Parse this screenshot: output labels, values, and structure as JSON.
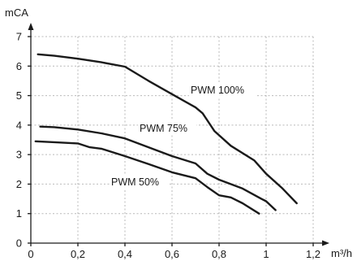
{
  "chart_data": {
    "type": "line",
    "title": "",
    "ylabel": "mCA",
    "xlabel": "m³/h",
    "xlim": [
      0,
      1.2
    ],
    "ylim": [
      0,
      7
    ],
    "x_ticks": [
      "0",
      "0,2",
      "0,4",
      "0,6",
      "0,8",
      "1",
      "1,2"
    ],
    "y_ticks": [
      "0",
      "1",
      "2",
      "3",
      "4",
      "5",
      "6",
      "7"
    ],
    "grid": true,
    "legend": "inline labels on curves",
    "line_color": "#1a1a1a",
    "series": [
      {
        "name": "PWM 100%",
        "points": [
          [
            0.03,
            6.4
          ],
          [
            0.1,
            6.35
          ],
          [
            0.2,
            6.25
          ],
          [
            0.3,
            6.13
          ],
          [
            0.4,
            5.98
          ],
          [
            0.5,
            5.5
          ],
          [
            0.6,
            5.05
          ],
          [
            0.7,
            4.6
          ],
          [
            0.73,
            4.4
          ],
          [
            0.78,
            3.8
          ],
          [
            0.85,
            3.3
          ],
          [
            0.95,
            2.8
          ],
          [
            1.0,
            2.35
          ],
          [
            1.07,
            1.85
          ],
          [
            1.13,
            1.35
          ]
        ]
      },
      {
        "name": "PWM 75%",
        "points": [
          [
            0.04,
            3.95
          ],
          [
            0.1,
            3.93
          ],
          [
            0.2,
            3.85
          ],
          [
            0.3,
            3.72
          ],
          [
            0.4,
            3.55
          ],
          [
            0.5,
            3.25
          ],
          [
            0.6,
            2.95
          ],
          [
            0.7,
            2.7
          ],
          [
            0.75,
            2.35
          ],
          [
            0.8,
            2.15
          ],
          [
            0.9,
            1.85
          ],
          [
            0.98,
            1.5
          ],
          [
            1.0,
            1.42
          ],
          [
            1.04,
            1.12
          ]
        ]
      },
      {
        "name": "PWM 50%",
        "points": [
          [
            0.02,
            3.45
          ],
          [
            0.1,
            3.42
          ],
          [
            0.2,
            3.38
          ],
          [
            0.25,
            3.25
          ],
          [
            0.3,
            3.2
          ],
          [
            0.4,
            2.95
          ],
          [
            0.5,
            2.68
          ],
          [
            0.6,
            2.4
          ],
          [
            0.7,
            2.2
          ],
          [
            0.75,
            1.9
          ],
          [
            0.8,
            1.62
          ],
          [
            0.85,
            1.55
          ],
          [
            0.9,
            1.35
          ],
          [
            0.97,
            1.0
          ]
        ]
      }
    ]
  }
}
